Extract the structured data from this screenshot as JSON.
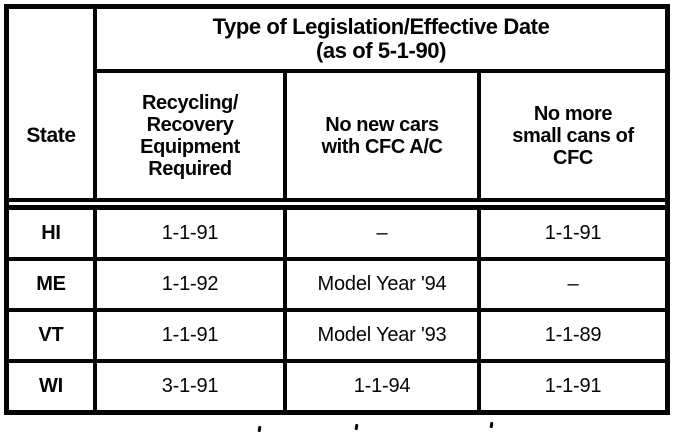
{
  "page": {
    "background": "#ffffff",
    "ink": "#050505"
  },
  "table": {
    "corner_label": "State",
    "group_header": {
      "line1": "Type of Legislation/Effective Date",
      "line2": "(as of 5-1-90)"
    },
    "sub_headers": [
      {
        "lines": [
          "Recycling/",
          "Recovery",
          "Equipment",
          "Required"
        ]
      },
      {
        "lines": [
          "No new cars",
          "with CFC A/C"
        ]
      },
      {
        "lines": [
          "No more",
          "small cans of",
          "CFC"
        ]
      }
    ],
    "rows": [
      {
        "state": "HI",
        "values": [
          "1-1-91",
          "–",
          "1-1-91"
        ]
      },
      {
        "state": "ME",
        "values": [
          "1-1-92",
          "Model Year '94",
          "–"
        ]
      },
      {
        "state": "VT",
        "values": [
          "1-1-91",
          "Model Year '93",
          "1-1-89"
        ]
      },
      {
        "state": "WI",
        "values": [
          "3-1-91",
          "1-1-94",
          "1-1-91"
        ]
      }
    ]
  },
  "chart_data": {
    "type": "table",
    "title": "Type of Legislation/Effective Date (as of 5-1-90)",
    "columns": [
      "State",
      "Recycling/Recovery Equipment Required",
      "No new cars with CFC A/C",
      "No more small cans of CFC"
    ],
    "rows": [
      [
        "HI",
        "1-1-91",
        "–",
        "1-1-91"
      ],
      [
        "ME",
        "1-1-92",
        "Model Year '94",
        "–"
      ],
      [
        "VT",
        "1-1-91",
        "Model Year '93",
        "1-1-89"
      ],
      [
        "WI",
        "3-1-91",
        "1-1-94",
        "1-1-91"
      ]
    ]
  }
}
